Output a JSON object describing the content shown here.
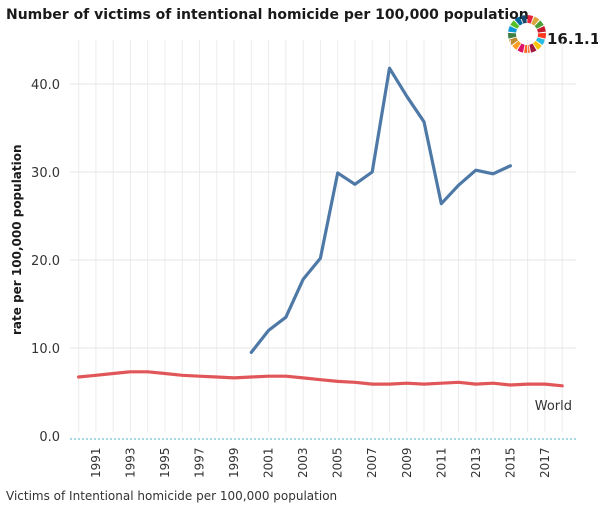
{
  "header": {
    "title": "Number of victims of intentional homicide per 100,000 population",
    "sdg_code": "16.1.1"
  },
  "footer": {
    "caption": "Victims of Intentional homicide per 100,000 population"
  },
  "badge": {
    "icon": "sdg-wheel-icon",
    "colors": [
      "#e5243b",
      "#dda63a",
      "#4c9f38",
      "#c5192d",
      "#ff3a21",
      "#26bde2",
      "#fcc30b",
      "#a21942",
      "#fd6925",
      "#dd1367",
      "#fd9d24",
      "#bf8b2e",
      "#3f7e44",
      "#0a97d9",
      "#56c02b",
      "#00689d",
      "#19486a"
    ]
  },
  "chart_data": {
    "type": "line",
    "title": "Number of victims of intentional homicide per 100,000 population",
    "xlabel": "",
    "ylabel": "rate per 100,000 population",
    "ylim": [
      0,
      45
    ],
    "xlim": [
      1989.5,
      2018.8
    ],
    "grid": true,
    "y_ticks": [
      "0.0",
      "10.0",
      "20.0",
      "30.0",
      "40.0"
    ],
    "y_tick_values": [
      0,
      10,
      20,
      30,
      40
    ],
    "x_ticks": [
      "1991",
      "1993",
      "1995",
      "1997",
      "1999",
      "2001",
      "2003",
      "2005",
      "2007",
      "2009",
      "2011",
      "2013",
      "2015",
      "2017"
    ],
    "series": [
      {
        "color": "#4e79a7",
        "x": [
          2000,
          2001,
          2002,
          2003,
          2004,
          2005,
          2006,
          2007,
          2008,
          2009,
          2010,
          2011,
          2012,
          2013,
          2014,
          2015
        ],
        "values": [
          9.5,
          12.0,
          13.5,
          17.8,
          20.2,
          29.9,
          28.6,
          30.0,
          41.8,
          38.6,
          35.7,
          26.4,
          28.5,
          30.2,
          29.8,
          30.7
        ]
      },
      {
        "name": "World",
        "color": "#e15759",
        "x": [
          1990,
          1991,
          1992,
          1993,
          1994,
          1995,
          1996,
          1997,
          1998,
          1999,
          2000,
          2001,
          2002,
          2003,
          2004,
          2005,
          2006,
          2007,
          2008,
          2009,
          2010,
          2011,
          2012,
          2013,
          2014,
          2015,
          2016,
          2017,
          2018
        ],
        "values": [
          6.7,
          6.9,
          7.1,
          7.3,
          7.3,
          7.1,
          6.9,
          6.8,
          6.7,
          6.6,
          6.7,
          6.8,
          6.8,
          6.6,
          6.4,
          6.2,
          6.1,
          5.9,
          5.9,
          6.0,
          5.9,
          6.0,
          6.1,
          5.9,
          6.0,
          5.8,
          5.9,
          5.9,
          5.7
        ]
      }
    ]
  }
}
